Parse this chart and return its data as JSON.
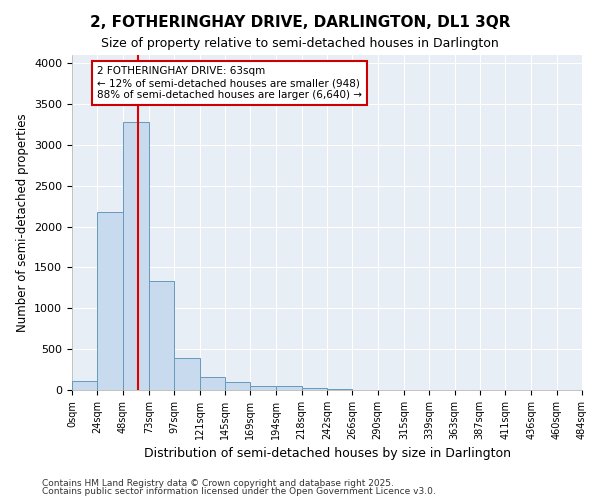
{
  "title": "2, FOTHERINGHAY DRIVE, DARLINGTON, DL1 3QR",
  "subtitle": "Size of property relative to semi-detached houses in Darlington",
  "xlabel": "Distribution of semi-detached houses by size in Darlington",
  "ylabel": "Number of semi-detached properties",
  "footnote1": "Contains HM Land Registry data © Crown copyright and database right 2025.",
  "footnote2": "Contains public sector information licensed under the Open Government Licence v3.0.",
  "bin_edges": [
    0,
    24,
    48,
    73,
    97,
    121,
    145,
    169,
    194,
    218,
    242,
    266,
    290,
    315,
    339,
    363,
    387,
    411,
    436,
    460,
    484
  ],
  "bar_heights": [
    105,
    2175,
    3280,
    1340,
    390,
    155,
    95,
    55,
    45,
    25,
    18,
    6,
    2,
    1,
    1,
    0,
    0,
    0,
    0,
    0
  ],
  "bar_color": "#c8daed",
  "bar_edge_color": "#6699bb",
  "property_size": 63,
  "vline_color": "#dd0000",
  "annotation_text": "2 FOTHERINGHAY DRIVE: 63sqm\n← 12% of semi-detached houses are smaller (948)\n88% of semi-detached houses are larger (6,640) →",
  "ylim": [
    0,
    4100
  ],
  "background_color": "#ffffff",
  "plot_bg_color": "#e8eef5",
  "grid_color": "#ffffff",
  "tick_labels": [
    "0sqm",
    "24sqm",
    "48sqm",
    "73sqm",
    "97sqm",
    "121sqm",
    "145sqm",
    "169sqm",
    "194sqm",
    "218sqm",
    "242sqm",
    "266sqm",
    "290sqm",
    "315sqm",
    "339sqm",
    "363sqm",
    "387sqm",
    "411sqm",
    "436sqm",
    "460sqm",
    "484sqm"
  ]
}
